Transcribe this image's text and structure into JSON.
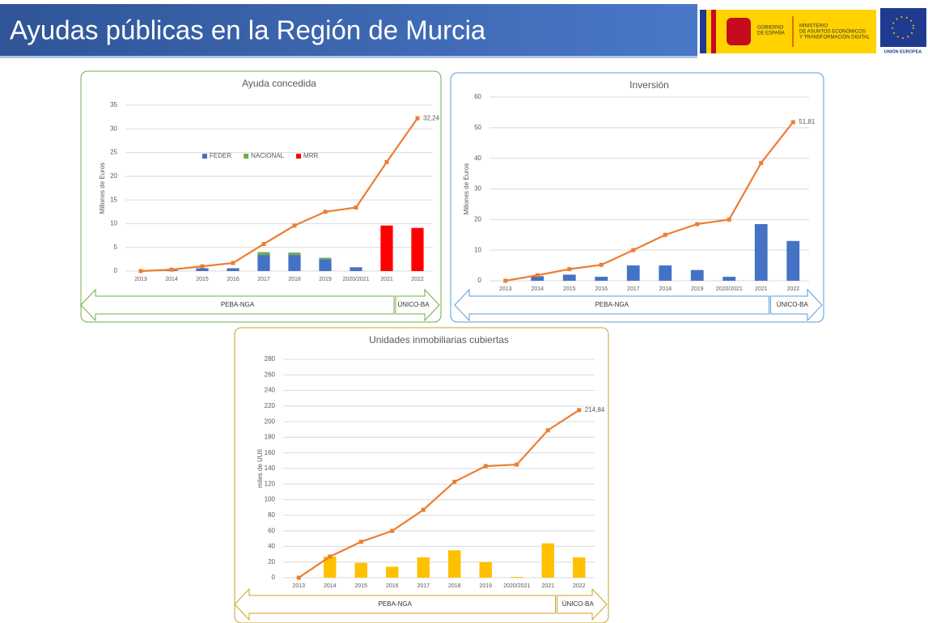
{
  "title": "Ayudas públicas en la Región de Murcia",
  "logos": {
    "gov": [
      "GOBIERNO",
      "DE ESPAÑA"
    ],
    "ministry": [
      "MINISTERIO",
      "DE ASUNTOS ECONÓMICOS",
      "Y TRANSFORMACIÓN DIGITAL"
    ],
    "eu": "UNIÓN EUROPEA"
  },
  "chart_data": [
    {
      "type": "bar",
      "title": "Ayuda concedida",
      "ylabel": "Millones de Euros",
      "stacked": true,
      "legend": "inside",
      "categories": [
        "2013",
        "2014",
        "2015",
        "2016",
        "2017",
        "2018",
        "2019",
        "2020/2021",
        "2021",
        "2022"
      ],
      "series": [
        {
          "name": "FEDER",
          "color": "#4472c4",
          "values": [
            0,
            0.2,
            0.6,
            0.6,
            3.4,
            3.4,
            2.5,
            0.8,
            0,
            0
          ]
        },
        {
          "name": "NACIONAL",
          "color": "#70ad47",
          "values": [
            0,
            0,
            0,
            0,
            0.6,
            0.5,
            0.3,
            0,
            0,
            0
          ]
        },
        {
          "name": "MRR",
          "color": "#ff0000",
          "values": [
            0,
            0,
            0,
            0,
            0,
            0,
            0,
            0,
            9.6,
            9.1
          ]
        }
      ],
      "line": {
        "color": "#ed7d31",
        "values": [
          0,
          0.3,
          1.0,
          1.7,
          5.7,
          9.6,
          12.5,
          13.4,
          23.0,
          32.24
        ],
        "value_labels": [
          null,
          null,
          null,
          null,
          null,
          null,
          null,
          null,
          null,
          "32,24"
        ]
      },
      "ylim": [
        0,
        35
      ],
      "yticks": [
        0,
        5,
        10,
        15,
        20,
        25,
        30,
        35
      ],
      "grid": true,
      "periods": [
        "PEBA-NGA",
        "ÚNICO-BA"
      ],
      "border": "#70ad47"
    },
    {
      "type": "bar",
      "title": "Inversión",
      "ylabel": "Millones de Euros",
      "categories": [
        "2013",
        "2014",
        "2015",
        "2016",
        "2017",
        "2018",
        "2019",
        "2020/2021",
        "2021",
        "2022"
      ],
      "values": [
        0,
        1.5,
        2.0,
        1.3,
        5.0,
        5.0,
        3.5,
        1.3,
        18.5,
        13.0
      ],
      "color": "#4472c4",
      "line": {
        "color": "#ed7d31",
        "values": [
          0,
          1.8,
          3.8,
          5.2,
          10.0,
          15.0,
          18.5,
          20.0,
          38.5,
          51.81
        ],
        "value_labels": [
          null,
          null,
          null,
          null,
          null,
          null,
          null,
          null,
          null,
          "51,81"
        ]
      },
      "ylim": [
        0,
        60
      ],
      "yticks": [
        0,
        10,
        20,
        30,
        40,
        50,
        60
      ],
      "grid": true,
      "periods": [
        "PEBA-NGA",
        "ÚNICO-BA"
      ],
      "border": "#5b9bd5"
    },
    {
      "type": "bar",
      "title": "Unidades inmobiliarias cubiertas",
      "ylabel": "miles de UUII",
      "categories": [
        "2013",
        "2014",
        "2015",
        "2016",
        "2017",
        "2018",
        "2019",
        "2020/2021",
        "2021",
        "2022"
      ],
      "values": [
        0,
        27,
        19,
        14,
        26,
        35,
        20,
        1,
        44,
        26
      ],
      "color": "#ffc000",
      "line": {
        "color": "#ed7d31",
        "values": [
          0,
          27,
          46,
          60,
          87,
          123,
          143,
          145,
          189,
          214.84
        ],
        "value_labels": [
          null,
          null,
          null,
          null,
          null,
          null,
          null,
          null,
          null,
          "214,84"
        ]
      },
      "ylim": [
        0,
        280
      ],
      "yticks": [
        0,
        20,
        40,
        60,
        80,
        100,
        120,
        140,
        160,
        180,
        200,
        220,
        240,
        260,
        280
      ],
      "grid": true,
      "periods": [
        "PEBA-NGA",
        "ÚNICO-BA"
      ],
      "border": "#c9a227"
    }
  ]
}
